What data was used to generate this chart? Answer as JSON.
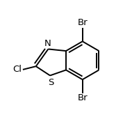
{
  "background": "#ffffff",
  "bond_color": "#000000",
  "text_color": "#000000",
  "line_width": 1.4,
  "dbo": 0.022,
  "font_size": 9.5,
  "figsize": [
    1.9,
    1.78
  ],
  "dpi": 100,
  "label_N": "N",
  "label_S": "S",
  "label_Cl": "Cl",
  "label_Br": "Br"
}
